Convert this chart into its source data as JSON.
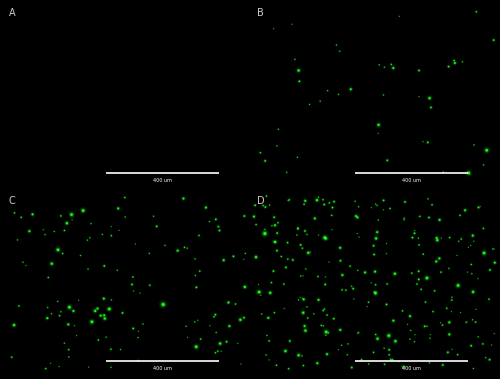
{
  "panels": [
    "A",
    "B",
    "C",
    "D"
  ],
  "background_color": "#000000",
  "dot_color_bright": "#33ff33",
  "dot_color_mid": "#00bb00",
  "dot_color_dim": "#007700",
  "label_color": "#cccccc",
  "scalebar_color": "#ffffff",
  "scalebar_label": "400 um",
  "label_fontsize": 7,
  "scalebar_fontsize": 3.5,
  "fig_width": 5.0,
  "fig_height": 3.79,
  "seeds": [
    42,
    101,
    202,
    303
  ],
  "dot_counts": [
    0,
    45,
    130,
    260
  ],
  "dot_alpha_bright": 0.9,
  "dot_alpha_glow": 0.2
}
